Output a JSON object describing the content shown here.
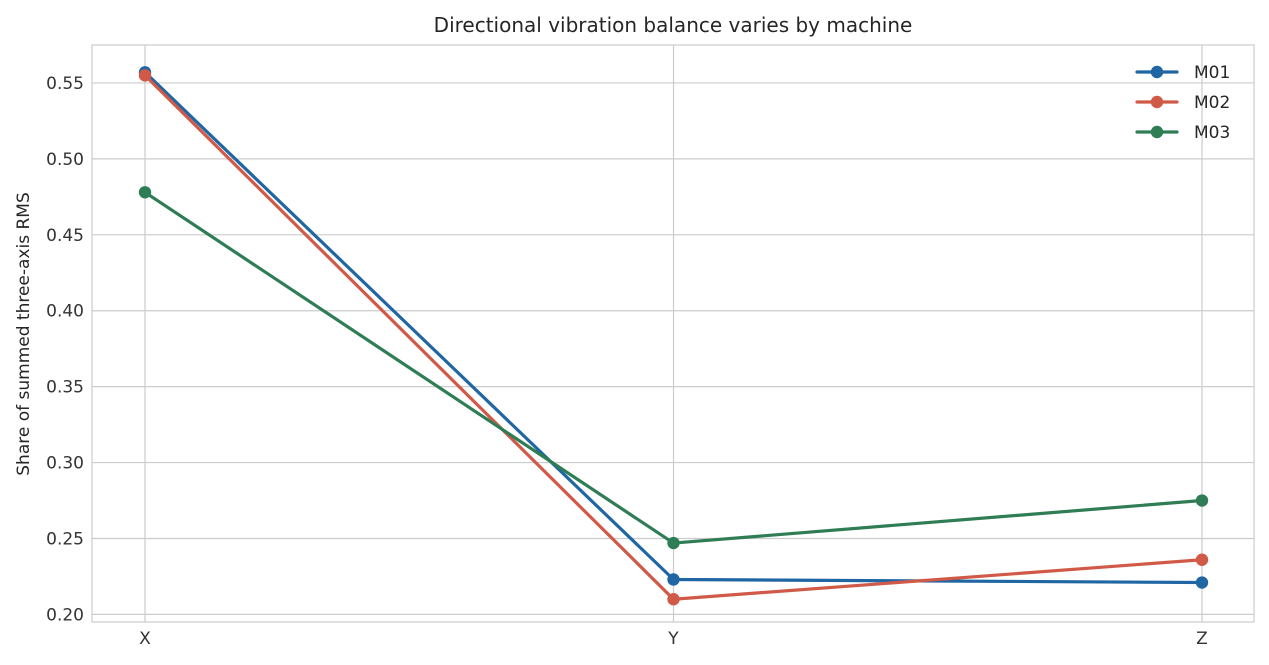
{
  "chart_data": {
    "type": "line",
    "title": "Directional vibration balance varies by machine",
    "xlabel": "",
    "ylabel": "Share of summed three-axis RMS",
    "categories": [
      "X",
      "Y",
      "Z"
    ],
    "ylim": [
      0.195,
      0.575
    ],
    "yticks": [
      0.2,
      0.25,
      0.3,
      0.35,
      0.4,
      0.45,
      0.5,
      0.55
    ],
    "ytick_labels": [
      "0.20",
      "0.25",
      "0.30",
      "0.35",
      "0.40",
      "0.45",
      "0.50",
      "0.55"
    ],
    "grid": true,
    "legend_position": "top-right",
    "series": [
      {
        "name": "M01",
        "color": "#1f66a3",
        "values": [
          0.557,
          0.223,
          0.221
        ]
      },
      {
        "name": "M02",
        "color": "#d05a47",
        "values": [
          0.555,
          0.21,
          0.236
        ]
      },
      {
        "name": "M03",
        "color": "#2e7d55",
        "values": [
          0.478,
          0.247,
          0.275
        ]
      }
    ]
  }
}
